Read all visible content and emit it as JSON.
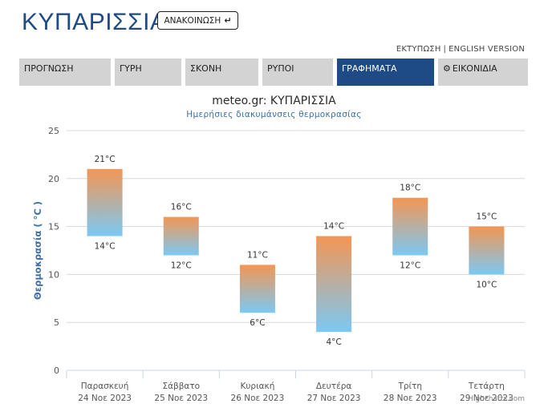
{
  "header": {
    "site_title": "ΚΥΠΑΡΙΣΣΙΑ",
    "announce_label": "ΑΝΑΚΟΙΝΩΣΗ",
    "print_link": "ΕΚΤΥΠΩΣΗ",
    "separator": "|",
    "english_link": "ENGLISH VERSION"
  },
  "tabs": [
    {
      "label": "ΠΡΟΓΝΩΣΗ",
      "active": false
    },
    {
      "label": "ΓΥΡΗ",
      "active": false
    },
    {
      "label": "ΣΚΟΝΗ",
      "active": false
    },
    {
      "label": "ΡΥΠΟΙ",
      "active": false
    },
    {
      "label": "ΓΡΑΦΗΜΑΤΑ",
      "active": true
    },
    {
      "label": "ΕΙΚΟΝΙΔΙΑ",
      "active": false,
      "icon": "gear-icon"
    }
  ],
  "colors": {
    "brand": "#1e4a86",
    "bar_top": "#f39654",
    "bar_bottom": "#7cc8f3",
    "subtitle": "#3f6fa8",
    "ylabel": "#3f6fa8"
  },
  "credits": "Highcharts.com",
  "chart_data": {
    "type": "bar",
    "subtype": "columnrange",
    "title": "meteo.gr: ΚΥΠΑΡΙΣΣΙΑ",
    "subtitle": "Ημερήσιες διακυμάνσεις θερμοκρασίας",
    "ylabel": "Θερμοκρασία ( °C )",
    "xlabel": "",
    "ylim": [
      0,
      25
    ],
    "yticks": [
      0,
      5,
      10,
      15,
      20,
      25
    ],
    "grid": true,
    "unit": "°C",
    "categories": [
      [
        "Παρασκευή",
        "24 Νοε 2023"
      ],
      [
        "Σάββατο",
        "25 Νοε 2023"
      ],
      [
        "Κυριακή",
        "26 Νοε 2023"
      ],
      [
        "Δευτέρα",
        "27 Νοε 2023"
      ],
      [
        "Τρίτη",
        "28 Νοε 2023"
      ],
      [
        "Τετάρτη",
        "29 Νοε 2023"
      ]
    ],
    "low": [
      14,
      12,
      6,
      4,
      12,
      10
    ],
    "high": [
      21,
      16,
      11,
      14,
      18,
      15
    ]
  }
}
